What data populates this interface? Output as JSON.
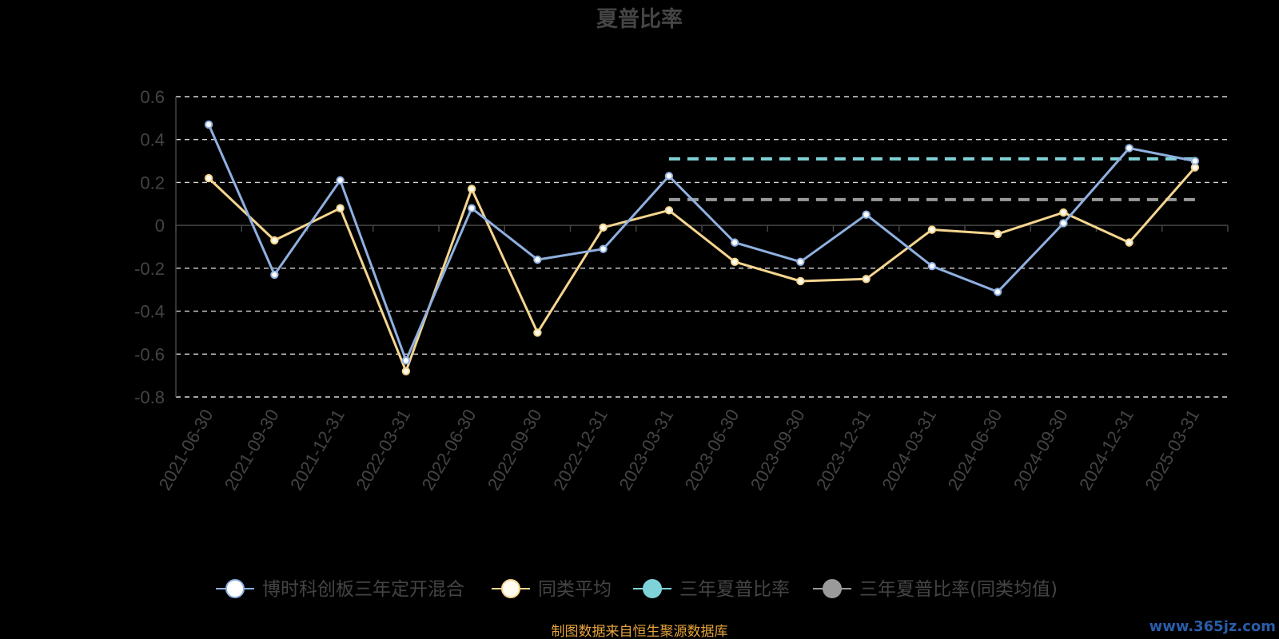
{
  "chart_data": {
    "type": "line",
    "title": "夏普比率",
    "categories": [
      "2021-06-30",
      "2021-09-30",
      "2021-12-31",
      "2022-03-31",
      "2022-06-30",
      "2022-09-30",
      "2022-12-31",
      "2023-03-31",
      "2023-06-30",
      "2023-09-30",
      "2023-12-31",
      "2024-03-31",
      "2024-06-30",
      "2024-09-30",
      "2024-12-31",
      "2025-03-31"
    ],
    "y_ticks": [
      "0.6",
      "0.4",
      "0.2",
      "0",
      "-0.2",
      "-0.4",
      "-0.6",
      "-0.8"
    ],
    "ylim": [
      -0.8,
      0.6
    ],
    "grid": true,
    "legend_position": "bottom",
    "series": [
      {
        "name": "博时科创板三年定开混合",
        "color": "#8fb0e0",
        "marker_fill": "#ffffff",
        "values": [
          0.47,
          -0.23,
          0.21,
          -0.63,
          0.08,
          -0.16,
          -0.11,
          0.23,
          -0.08,
          -0.17,
          0.05,
          -0.19,
          -0.31,
          0.01,
          0.36,
          0.3
        ]
      },
      {
        "name": "同类平均",
        "color": "#f5d58f",
        "marker_fill": "#fffdf0",
        "values": [
          0.22,
          -0.07,
          0.08,
          -0.68,
          0.17,
          -0.5,
          -0.01,
          0.07,
          -0.17,
          -0.26,
          -0.25,
          -0.02,
          -0.04,
          0.06,
          -0.08,
          0.27
        ]
      }
    ],
    "reference_lines": [
      {
        "name": "三年夏普比率",
        "color": "#7fd3d8",
        "value": 0.31,
        "from": "2023-03-31",
        "to": "2025-03-31"
      },
      {
        "name": "三年夏普比率(同类均值)",
        "color": "#9a9a9a",
        "value": 0.12,
        "from": "2023-03-31",
        "to": "2025-03-31"
      }
    ],
    "source_text": "制图数据来自恒生聚源数据库",
    "watermark": "www.365jz.com"
  }
}
